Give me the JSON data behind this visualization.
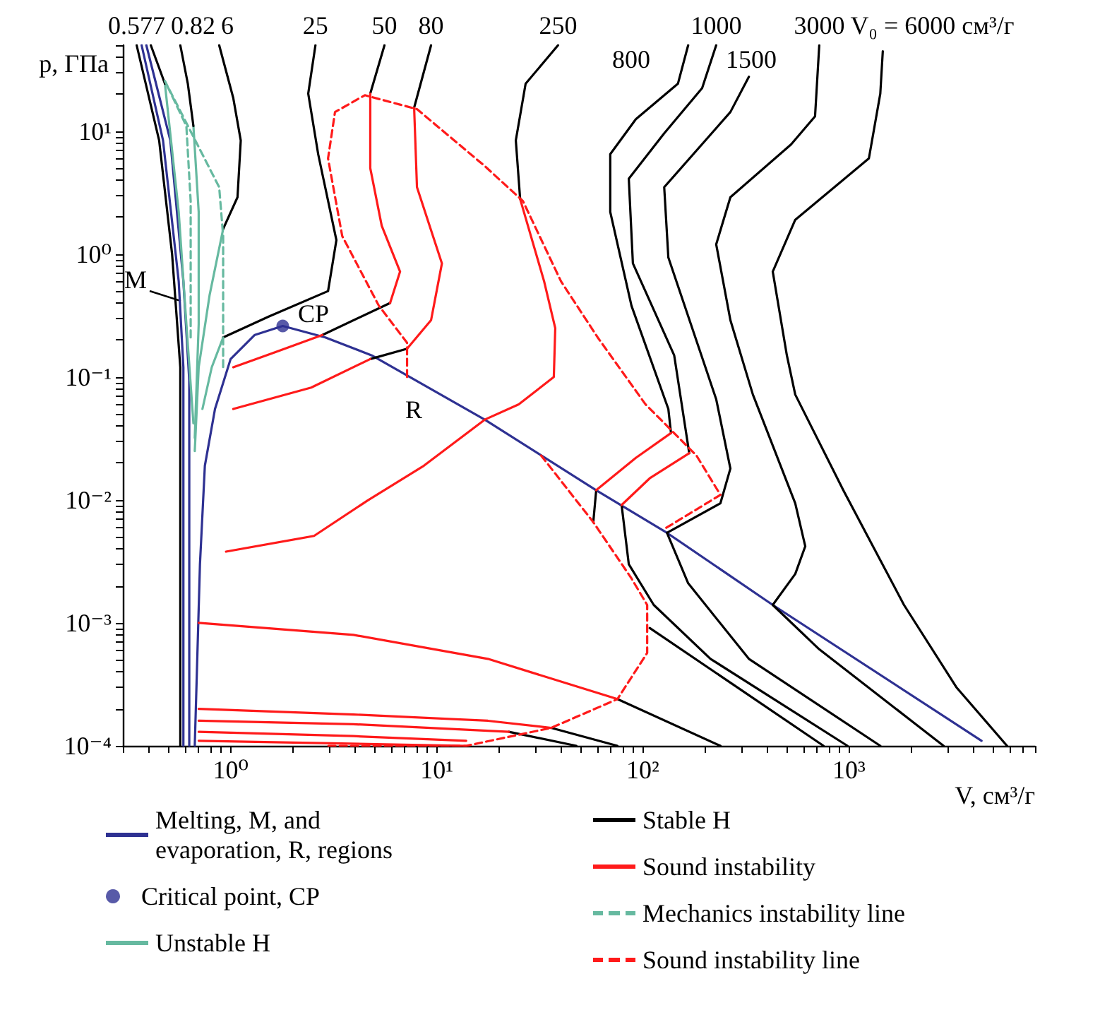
{
  "chart_data": {
    "type": "line",
    "xlabel": "V, см³/г",
    "ylabel": "p, ГПа",
    "log": "xy",
    "grid": false,
    "legend": "bottom",
    "xlim": [
      0.3,
      8000
    ],
    "ylim": [
      0.0001,
      50
    ],
    "xticks": [
      {
        "value": 0.3,
        "label": null
      },
      {
        "value": 0.4,
        "label": null
      },
      {
        "value": 0.5,
        "label": null
      },
      {
        "value": 0.6,
        "label": null
      },
      {
        "value": 0.7,
        "label": null
      },
      {
        "value": 0.8,
        "label": null
      },
      {
        "value": 0.9,
        "label": null
      },
      {
        "value": 1,
        "label": "10⁰"
      },
      {
        "value": 2,
        "label": null
      },
      {
        "value": 3,
        "label": null
      },
      {
        "value": 4,
        "label": null
      },
      {
        "value": 5,
        "label": null
      },
      {
        "value": 6,
        "label": null
      },
      {
        "value": 7,
        "label": null
      },
      {
        "value": 8,
        "label": null
      },
      {
        "value": 9,
        "label": null
      },
      {
        "value": 10,
        "label": "10¹"
      },
      {
        "value": 20,
        "label": null
      },
      {
        "value": 30,
        "label": null
      },
      {
        "value": 40,
        "label": null
      },
      {
        "value": 50,
        "label": null
      },
      {
        "value": 60,
        "label": null
      },
      {
        "value": 70,
        "label": null
      },
      {
        "value": 80,
        "label": null
      },
      {
        "value": 90,
        "label": null
      },
      {
        "value": 100,
        "label": "10²"
      },
      {
        "value": 200,
        "label": null
      },
      {
        "value": 300,
        "label": null
      },
      {
        "value": 400,
        "label": null
      },
      {
        "value": 500,
        "label": null
      },
      {
        "value": 600,
        "label": null
      },
      {
        "value": 700,
        "label": null
      },
      {
        "value": 800,
        "label": null
      },
      {
        "value": 900,
        "label": null
      },
      {
        "value": 1000,
        "label": "10³"
      },
      {
        "value": 2000,
        "label": null
      },
      {
        "value": 3000,
        "label": null
      },
      {
        "value": 4000,
        "label": null
      },
      {
        "value": 5000,
        "label": null
      },
      {
        "value": 6000,
        "label": null
      },
      {
        "value": 7000,
        "label": null
      },
      {
        "value": 8000,
        "label": null
      }
    ],
    "yticks": [
      {
        "value": 0.0001,
        "label": "10⁻⁴"
      },
      {
        "value": 0.0002,
        "label": null
      },
      {
        "value": 0.0003,
        "label": null
      },
      {
        "value": 0.0004,
        "label": null
      },
      {
        "value": 0.0005,
        "label": null
      },
      {
        "value": 0.0006,
        "label": null
      },
      {
        "value": 0.0007,
        "label": null
      },
      {
        "value": 0.0008,
        "label": null
      },
      {
        "value": 0.0009,
        "label": null
      },
      {
        "value": 0.001,
        "label": "10⁻³"
      },
      {
        "value": 0.002,
        "label": null
      },
      {
        "value": 0.003,
        "label": null
      },
      {
        "value": 0.004,
        "label": null
      },
      {
        "value": 0.005,
        "label": null
      },
      {
        "value": 0.006,
        "label": null
      },
      {
        "value": 0.007,
        "label": null
      },
      {
        "value": 0.008,
        "label": null
      },
      {
        "value": 0.009,
        "label": null
      },
      {
        "value": 0.01,
        "label": "10⁻²"
      },
      {
        "value": 0.02,
        "label": null
      },
      {
        "value": 0.03,
        "label": null
      },
      {
        "value": 0.04,
        "label": null
      },
      {
        "value": 0.05,
        "label": null
      },
      {
        "value": 0.06,
        "label": null
      },
      {
        "value": 0.07,
        "label": null
      },
      {
        "value": 0.08,
        "label": null
      },
      {
        "value": 0.09,
        "label": null
      },
      {
        "value": 0.1,
        "label": "10⁻¹"
      },
      {
        "value": 0.2,
        "label": null
      },
      {
        "value": 0.3,
        "label": null
      },
      {
        "value": 0.4,
        "label": null
      },
      {
        "value": 0.5,
        "label": null
      },
      {
        "value": 0.6,
        "label": null
      },
      {
        "value": 0.7,
        "label": null
      },
      {
        "value": 0.8,
        "label": null
      },
      {
        "value": 0.9,
        "label": null
      },
      {
        "value": 1,
        "label": "10⁰"
      },
      {
        "value": 2,
        "label": null
      },
      {
        "value": 3,
        "label": null
      },
      {
        "value": 4,
        "label": null
      },
      {
        "value": 5,
        "label": null
      },
      {
        "value": 6,
        "label": null
      },
      {
        "value": 7,
        "label": null
      },
      {
        "value": 8,
        "label": null
      },
      {
        "value": 9,
        "label": null
      },
      {
        "value": 10,
        "label": "10¹"
      },
      {
        "value": 20,
        "label": null
      },
      {
        "value": 30,
        "label": null
      },
      {
        "value": 40,
        "label": null
      },
      {
        "value": 50,
        "label": null
      }
    ],
    "annotations": [
      {
        "text": "0.577",
        "x": 0.35,
        "y": 50
      },
      {
        "text": "0.82",
        "x": 0.57,
        "y": 50
      },
      {
        "text": "6",
        "x": 0.88,
        "y": 50
      },
      {
        "text": "25",
        "x": 2.58,
        "y": 50
      },
      {
        "text": "50",
        "x": 5.58,
        "y": 50
      },
      {
        "text": "80",
        "x": 9.39,
        "y": 50
      },
      {
        "text": "250",
        "x": 38.8,
        "y": 50
      },
      {
        "text": "1000",
        "x": 227,
        "y": 50
      },
      {
        "text": "3000",
        "x": 718,
        "y": 50
      },
      {
        "text": "V₀ = 6000 см³/г",
        "x": 1460,
        "y": 50
      },
      "800",
      "1500",
      "M",
      "CP",
      "R"
    ],
    "series": [
      {
        "name": "Melting, M, and evaporation, R, regions",
        "color": "#2e3192",
        "x": [
          0.37,
          0.47,
          0.56,
          0.59,
          0.59,
          null,
          0.39,
          0.51,
          0.59,
          0.63,
          0.63,
          null,
          0.67,
          0.71,
          0.75,
          0.84,
          1.0,
          1.31,
          1.79,
          2.88,
          4.84,
          17.1,
          59.4,
          131,
          427,
          4400
        ],
        "values": [
          50,
          8.4,
          0.6,
          0.12,
          0.0001,
          null,
          50,
          8.4,
          0.6,
          0.094,
          0.0001,
          null,
          0.0001,
          0.003,
          0.019,
          0.055,
          0.14,
          0.22,
          0.26,
          0.21,
          0.15,
          0.045,
          0.012,
          0.0054,
          0.0014,
          0.00011
        ]
      },
      {
        "name": "Critical point, CP",
        "color": "#2e3192",
        "type": "scatter",
        "marker": "circle",
        "x": [
          1.79
        ],
        "values": [
          0.26
        ]
      },
      {
        "name": "Unstable H",
        "color": "#66b9a0",
        "x": [
          0.48,
          0.56,
          0.61,
          0.66,
          null,
          0.66,
          0.7,
          0.7,
          0.67,
          null,
          0.92,
          0.79,
          0.7,
          0.67,
          null,
          0.92,
          0.81,
          0.73
        ],
        "values": [
          24.3,
          2.2,
          0.27,
          0.042,
          null,
          11,
          2.2,
          0.27,
          0.032,
          null,
          1.6,
          0.46,
          0.12,
          0.025,
          null,
          0.21,
          0.12,
          0.055
        ]
      },
      {
        "name": "Stable H",
        "color": "#000000",
        "x": [
          0.35,
          0.45,
          0.52,
          0.57,
          0.57,
          null,
          0.41,
          0.48,
          null,
          0.57,
          0.62,
          0.66,
          null,
          0.88,
          1.03,
          1.12,
          1.08,
          0.92,
          null,
          2.58,
          2.38,
          2.66,
          3.26,
          2.97,
          1.53,
          0.92,
          null,
          5.58,
          4.76,
          null,
          5.94,
          2.79,
          null,
          9.39,
          7.77,
          null,
          7.18,
          4.76,
          null,
          38.8,
          27.0,
          24.2,
          25.4,
          null,
          75.3,
          238,
          null,
          166,
          148,
          92.5,
          69.5,
          69.5,
          88.1,
          133,
          137,
          null,
          59.4,
          57.5,
          null,
          227,
          194,
          127,
          85.5,
          89.5,
          142,
          168,
          null,
          78.9,
          85.5,
          113,
          213,
          984,
          null,
          108,
          753,
          null,
          327,
          266,
          127,
          133,
          227,
          266,
          238,
          131,
          166,
          327,
          1420,
          null,
          718,
          685,
          524,
          266,
          227,
          266,
          342,
          549,
          614,
          549,
          427,
          718,
          2880,
          null,
          1460,
          1420,
          1250,
          549,
          427,
          500,
          549,
          939,
          1850,
          3320,
          5850,
          null,
          35.9,
          75.3,
          null,
          22.4,
          47.6
        ],
        "values": [
          50,
          8.4,
          1.0,
          0.12,
          0.0001,
          null,
          50,
          24.3,
          null,
          50,
          24.3,
          11,
          null,
          50,
          18.6,
          8.4,
          2.9,
          1.6,
          null,
          50,
          20.2,
          6.5,
          1.3,
          0.5,
          0.31,
          0.21,
          null,
          50,
          20.2,
          null,
          0.4,
          0.22,
          null,
          50,
          15.5,
          null,
          0.17,
          0.14,
          null,
          50,
          24.3,
          8.4,
          2.8,
          null,
          0.00024,
          0.0001,
          null,
          50,
          24.3,
          12.5,
          6.5,
          2.2,
          0.38,
          0.055,
          0.035,
          null,
          0.012,
          0.0066,
          null,
          50,
          22.4,
          9.6,
          4.1,
          0.84,
          0.15,
          0.024,
          null,
          0.0091,
          0.003,
          0.0014,
          0.00051,
          0.0001,
          null,
          0.00091,
          0.0001,
          null,
          27.7,
          14.3,
          3.5,
          0.94,
          0.066,
          0.018,
          0.0094,
          0.0054,
          0.0021,
          0.00051,
          0.0001,
          null,
          50,
          13.2,
          7.8,
          2.9,
          1.2,
          0.29,
          0.072,
          0.0094,
          0.0042,
          0.0025,
          0.0014,
          0.00061,
          0.0001,
          null,
          44.6,
          20.2,
          6.0,
          1.9,
          0.72,
          0.15,
          0.072,
          0.012,
          0.0014,
          0.0003,
          0.0001,
          null,
          0.00014,
          0.0001,
          null,
          0.00013,
          0.0001
        ]
      },
      {
        "name": "Sound instability",
        "color": "#ff1a1a",
        "x": [
          4.76,
          4.76,
          5.41,
          6.64,
          5.94,
          null,
          2.79,
          1.66,
          1.03,
          null,
          7.77,
          8.02,
          10.6,
          9.39,
          7.18,
          null,
          4.76,
          2.46,
          1.03,
          null,
          25.4,
          33.2,
          37.6,
          37.0,
          25.0,
          17.1,
          8.67,
          4.62,
          2.54,
          0.95,
          null,
          0.7,
          3.94,
          17.7,
          75.3,
          null,
          137,
          92.5,
          59.4,
          null,
          168,
          108,
          78.9,
          null,
          0.7,
          3.94,
          17.7,
          35.9,
          null,
          0.7,
          3.94,
          22.4,
          null,
          0.7,
          3.94,
          13.9,
          null,
          0.7,
          13.9
        ],
        "values": [
          20.2,
          5.0,
          1.7,
          0.72,
          0.4,
          null,
          0.22,
          0.16,
          0.12,
          null,
          15.5,
          3.5,
          0.84,
          0.29,
          0.17,
          null,
          0.14,
          0.082,
          0.055,
          null,
          2.8,
          0.6,
          0.25,
          0.1,
          0.06,
          0.045,
          0.019,
          0.0099,
          0.0051,
          0.0038,
          null,
          0.001,
          0.0008,
          0.00051,
          0.00024,
          null,
          0.035,
          0.022,
          0.012,
          null,
          0.024,
          0.015,
          0.0091,
          null,
          0.0002,
          0.00018,
          0.00016,
          0.00014,
          null,
          0.00016,
          0.00015,
          0.00013,
          null,
          0.00013,
          0.00012,
          0.00011,
          null,
          0.00011,
          0.0001
        ]
      },
      {
        "name": "Mechanics instability line",
        "color": "#66b9a0",
        "line_style": "dashed",
        "x": [
          0.64,
          0.64,
          0.61,
          0.48,
          0.88,
          0.92,
          0.92
        ],
        "values": [
          0.21,
          2.7,
          11,
          25.6,
          3.5,
          1.4,
          0.12
        ]
      },
      {
        "name": "Sound instability line",
        "color": "#ff1a1a",
        "line_style": "dashed",
        "x": [
          7.18,
          7.18,
          5.24,
          3.48,
          2.97,
          3.21,
          4.48,
          8.02,
          17.1,
          26.2,
          40.1,
          60.4,
          103,
          182,
          238,
          127,
          null,
          32.1,
          57.5,
          88.1,
          105,
          105,
          75.3,
          35.9,
          13.9,
          2.97
        ],
        "values": [
          0.1,
          0.19,
          0.38,
          1.4,
          6.0,
          14.3,
          19.6,
          15.1,
          5.2,
          2.7,
          0.6,
          0.21,
          0.06,
          0.023,
          0.011,
          0.0058,
          null,
          0.023,
          0.0066,
          0.0023,
          0.0014,
          0.00057,
          0.00024,
          0.00014,
          0.0001,
          0.0001
        ]
      }
    ]
  }
}
